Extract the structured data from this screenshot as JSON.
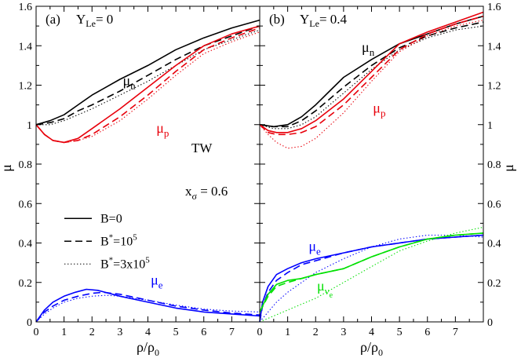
{
  "chart_data": [
    {
      "type": "line",
      "panel_label": "(a)",
      "condition_main": "Y",
      "condition_sub": "Le",
      "condition_value": "= 0",
      "annotations": {
        "tw": "TW",
        "xsigma_main": "x",
        "xsigma_sub": "σ",
        "xsigma_value": "= 0.6"
      },
      "legend": {
        "entries": [
          {
            "style": "solid",
            "prefix": "B",
            "sup": "",
            "suffix": "=0"
          },
          {
            "style": "dashed",
            "prefix": "B",
            "sup": "*",
            "suffix": "=10",
            "exp": "5",
            "post": ""
          },
          {
            "style": "dotted",
            "prefix": "B",
            "sup": "*",
            "suffix": "=3x10",
            "exp": "5",
            "post": ""
          }
        ]
      },
      "xlabel_main": "ρ/ρ",
      "xlabel_sub": "0",
      "ylabel": "μ",
      "xlim": [
        0,
        8
      ],
      "ylim": [
        0,
        1.6
      ],
      "xticks": [
        0,
        1,
        2,
        3,
        4,
        5,
        6,
        7
      ],
      "yticks": [
        0,
        0.2,
        0.4,
        0.6,
        0.8,
        1.0,
        1.2,
        1.4,
        1.6
      ],
      "ytick_labels": [
        "0",
        "0.2",
        "0.4",
        "0.6",
        "0.8",
        "1",
        "1.2",
        "1.4",
        "1.6"
      ],
      "series_labels": [
        {
          "series": "mu_n",
          "main": "μ",
          "sub": "n",
          "color": "#000000",
          "x": 3.1,
          "y": 1.2
        },
        {
          "series": "mu_p",
          "main": "μ",
          "sub": "p",
          "color": "#e8000b",
          "x": 4.3,
          "y": 0.96
        },
        {
          "series": "mu_e",
          "main": "μ",
          "sub": "e",
          "color": "#0000ff",
          "x": 4.1,
          "y": 0.19
        }
      ],
      "series": [
        {
          "id": "mu_n",
          "style": "solid",
          "color": "#000000",
          "x": [
            0,
            0.5,
            1,
            1.5,
            2,
            3,
            4,
            5,
            6,
            7,
            8
          ],
          "y": [
            1.0,
            1.02,
            1.05,
            1.1,
            1.15,
            1.23,
            1.3,
            1.38,
            1.44,
            1.49,
            1.53
          ]
        },
        {
          "id": "mu_n",
          "style": "dashed",
          "color": "#000000",
          "x": [
            0,
            0.5,
            1,
            1.5,
            2,
            3,
            4,
            5,
            6,
            7,
            8
          ],
          "y": [
            1.0,
            1.01,
            1.03,
            1.07,
            1.1,
            1.17,
            1.25,
            1.33,
            1.4,
            1.45,
            1.5
          ]
        },
        {
          "id": "mu_n",
          "style": "dotted",
          "color": "#000000",
          "x": [
            0,
            0.5,
            1,
            1.5,
            2,
            3,
            4,
            5,
            6,
            7,
            8
          ],
          "y": [
            1.0,
            1.0,
            1.02,
            1.05,
            1.08,
            1.15,
            1.22,
            1.3,
            1.38,
            1.43,
            1.48
          ]
        },
        {
          "id": "mu_p",
          "style": "solid",
          "color": "#e8000b",
          "x": [
            0,
            0.3,
            0.6,
            1,
            1.5,
            2,
            3,
            4,
            5,
            6,
            7,
            8
          ],
          "y": [
            1.0,
            0.95,
            0.92,
            0.91,
            0.93,
            0.98,
            1.08,
            1.19,
            1.3,
            1.4,
            1.46,
            1.5
          ]
        },
        {
          "id": "mu_p",
          "style": "dashed",
          "color": "#e8000b",
          "x": [
            0,
            0.3,
            0.6,
            1,
            1.5,
            2,
            3,
            4,
            5,
            6,
            7,
            8
          ],
          "y": [
            1.0,
            0.95,
            0.92,
            0.91,
            0.92,
            0.95,
            1.04,
            1.15,
            1.27,
            1.38,
            1.44,
            1.49
          ]
        },
        {
          "id": "mu_p",
          "style": "dotted",
          "color": "#e8000b",
          "x": [
            0,
            0.3,
            0.6,
            1,
            1.5,
            2,
            3,
            4,
            5,
            6,
            7,
            8
          ],
          "y": [
            1.0,
            0.95,
            0.92,
            0.91,
            0.92,
            0.94,
            1.02,
            1.13,
            1.25,
            1.36,
            1.42,
            1.47
          ]
        },
        {
          "id": "mu_e",
          "style": "solid",
          "color": "#0000ff",
          "x": [
            0,
            0.3,
            0.6,
            1,
            1.4,
            1.8,
            2.2,
            3,
            4,
            5,
            6,
            7,
            8
          ],
          "y": [
            0.0,
            0.06,
            0.1,
            0.13,
            0.15,
            0.165,
            0.16,
            0.13,
            0.1,
            0.07,
            0.05,
            0.04,
            0.03
          ]
        },
        {
          "id": "mu_e",
          "style": "dashed",
          "color": "#0000ff",
          "x": [
            0,
            0.3,
            0.6,
            1,
            1.5,
            2,
            2.4,
            3,
            4,
            5,
            6,
            7,
            8
          ],
          "y": [
            0.0,
            0.05,
            0.08,
            0.11,
            0.13,
            0.145,
            0.15,
            0.14,
            0.11,
            0.08,
            0.06,
            0.045,
            0.035
          ]
        },
        {
          "id": "mu_e",
          "style": "dotted",
          "color": "#0000ff",
          "x": [
            0,
            0.3,
            0.6,
            1,
            1.5,
            2,
            2.5,
            3,
            4,
            5,
            6,
            7,
            8
          ],
          "y": [
            0.0,
            0.04,
            0.07,
            0.1,
            0.12,
            0.13,
            0.135,
            0.13,
            0.11,
            0.085,
            0.065,
            0.055,
            0.05
          ]
        }
      ]
    },
    {
      "type": "line",
      "panel_label": "(b)",
      "condition_main": "Y",
      "condition_sub": "Le",
      "condition_value": "= 0.4",
      "xlabel_main": "ρ/ρ",
      "xlabel_sub": "0",
      "ylabel": "μ",
      "xlim": [
        0,
        8
      ],
      "ylim": [
        0,
        1.6
      ],
      "xticks": [
        0,
        1,
        2,
        3,
        4,
        5,
        6,
        7
      ],
      "yticks": [
        0,
        0.2,
        0.4,
        0.6,
        0.8,
        1.0,
        1.2,
        1.4,
        1.6
      ],
      "ytick_labels": [
        "0",
        "0.2",
        "0.4",
        "0.6",
        "0.8",
        "1",
        "1.2",
        "1.4",
        "1.6"
      ],
      "series_labels": [
        {
          "series": "mu_n",
          "main": "μ",
          "sub": "n",
          "color": "#000000",
          "x": 3.65,
          "y": 1.37
        },
        {
          "series": "mu_p",
          "main": "μ",
          "sub": "p",
          "color": "#e8000b",
          "x": 4.05,
          "y": 1.06
        },
        {
          "series": "mu_e",
          "main": "μ",
          "sub": "e",
          "color": "#0000ff",
          "x": 1.75,
          "y": 0.36
        },
        {
          "series": "mu_nu_e",
          "main": "μ",
          "sub": "ν",
          "subsub": "e",
          "color": "#00e000",
          "x": 2.05,
          "y": 0.16
        }
      ],
      "series": [
        {
          "id": "mu_n",
          "style": "solid",
          "color": "#000000",
          "x": [
            0,
            0.5,
            1,
            1.5,
            2,
            2.5,
            3,
            4,
            5,
            6,
            7,
            8
          ],
          "y": [
            1.0,
            0.99,
            1.0,
            1.04,
            1.1,
            1.17,
            1.24,
            1.33,
            1.41,
            1.46,
            1.51,
            1.55
          ]
        },
        {
          "id": "mu_n",
          "style": "dashed",
          "color": "#000000",
          "x": [
            0,
            0.5,
            1,
            1.5,
            2,
            2.5,
            3,
            4,
            5,
            6,
            7,
            8
          ],
          "y": [
            1.0,
            0.99,
            0.99,
            1.02,
            1.07,
            1.13,
            1.19,
            1.3,
            1.39,
            1.45,
            1.49,
            1.52
          ]
        },
        {
          "id": "mu_n",
          "style": "dotted",
          "color": "#000000",
          "x": [
            0,
            0.5,
            1,
            1.5,
            2,
            2.5,
            3,
            4,
            5,
            6,
            7,
            8
          ],
          "y": [
            1.0,
            0.98,
            0.98,
            1.0,
            1.04,
            1.1,
            1.16,
            1.28,
            1.38,
            1.44,
            1.48,
            1.5
          ]
        },
        {
          "id": "mu_p",
          "style": "solid",
          "color": "#e8000b",
          "x": [
            0,
            0.3,
            0.6,
            1,
            1.5,
            2,
            3,
            4,
            5,
            6,
            7,
            8
          ],
          "y": [
            1.0,
            0.97,
            0.96,
            0.96,
            0.98,
            1.02,
            1.13,
            1.27,
            1.41,
            1.47,
            1.52,
            1.57
          ]
        },
        {
          "id": "mu_p",
          "style": "dashed",
          "color": "#e8000b",
          "x": [
            0,
            0.3,
            0.6,
            1,
            1.5,
            2,
            3,
            4,
            5,
            6,
            7,
            8
          ],
          "y": [
            1.0,
            0.96,
            0.95,
            0.95,
            0.96,
            0.99,
            1.1,
            1.24,
            1.38,
            1.46,
            1.51,
            1.55
          ]
        },
        {
          "id": "mu_p",
          "style": "dotted",
          "color": "#e8000b",
          "x": [
            0,
            0.3,
            0.6,
            1,
            1.5,
            2,
            3,
            4,
            5,
            6,
            7,
            8
          ],
          "y": [
            1.0,
            0.95,
            0.91,
            0.88,
            0.89,
            0.93,
            1.06,
            1.22,
            1.37,
            1.45,
            1.5,
            1.53
          ]
        },
        {
          "id": "mu_e",
          "style": "solid",
          "color": "#0000ff",
          "x": [
            0,
            0.1,
            0.3,
            0.6,
            1,
            1.5,
            2,
            3,
            4,
            5,
            6,
            7,
            8
          ],
          "y": [
            0.0,
            0.1,
            0.18,
            0.24,
            0.27,
            0.3,
            0.32,
            0.35,
            0.38,
            0.4,
            0.42,
            0.43,
            0.44
          ]
        },
        {
          "id": "mu_e",
          "style": "dashed",
          "color": "#0000ff",
          "x": [
            0,
            0.1,
            0.3,
            0.6,
            1,
            1.5,
            2,
            3,
            4,
            5,
            6,
            7,
            8
          ],
          "y": [
            0.0,
            0.08,
            0.15,
            0.21,
            0.25,
            0.29,
            0.31,
            0.35,
            0.38,
            0.4,
            0.42,
            0.43,
            0.44
          ]
        },
        {
          "id": "mu_e",
          "style": "dotted",
          "color": "#0000ff",
          "x": [
            0,
            0.3,
            0.6,
            1,
            1.5,
            2,
            3,
            4,
            5,
            6,
            7,
            8
          ],
          "y": [
            0.0,
            0.05,
            0.1,
            0.15,
            0.2,
            0.25,
            0.32,
            0.38,
            0.42,
            0.44,
            0.44,
            0.43
          ]
        },
        {
          "id": "mu_nu_e",
          "style": "solid",
          "color": "#00e000",
          "x": [
            0,
            0.3,
            0.6,
            1,
            1.5,
            2,
            3,
            4,
            5,
            6,
            7,
            8
          ],
          "y": [
            0.05,
            0.14,
            0.19,
            0.21,
            0.22,
            0.24,
            0.27,
            0.33,
            0.38,
            0.42,
            0.44,
            0.45
          ]
        },
        {
          "id": "mu_nu_e",
          "style": "dashed",
          "color": "#00e000",
          "x": [
            0,
            0.3,
            0.6,
            1,
            1.5,
            2,
            3,
            4,
            5,
            6,
            7,
            8
          ],
          "y": [
            0.05,
            0.13,
            0.18,
            0.2,
            0.22,
            0.24,
            0.27,
            0.33,
            0.38,
            0.42,
            0.44,
            0.45
          ]
        },
        {
          "id": "mu_nu_e",
          "style": "dotted",
          "color": "#00e000",
          "x": [
            0,
            0.5,
            1,
            1.5,
            2,
            3,
            4,
            5,
            6,
            7,
            8
          ],
          "y": [
            0.0,
            0.03,
            0.06,
            0.09,
            0.12,
            0.2,
            0.28,
            0.36,
            0.41,
            0.45,
            0.48
          ]
        }
      ]
    }
  ]
}
